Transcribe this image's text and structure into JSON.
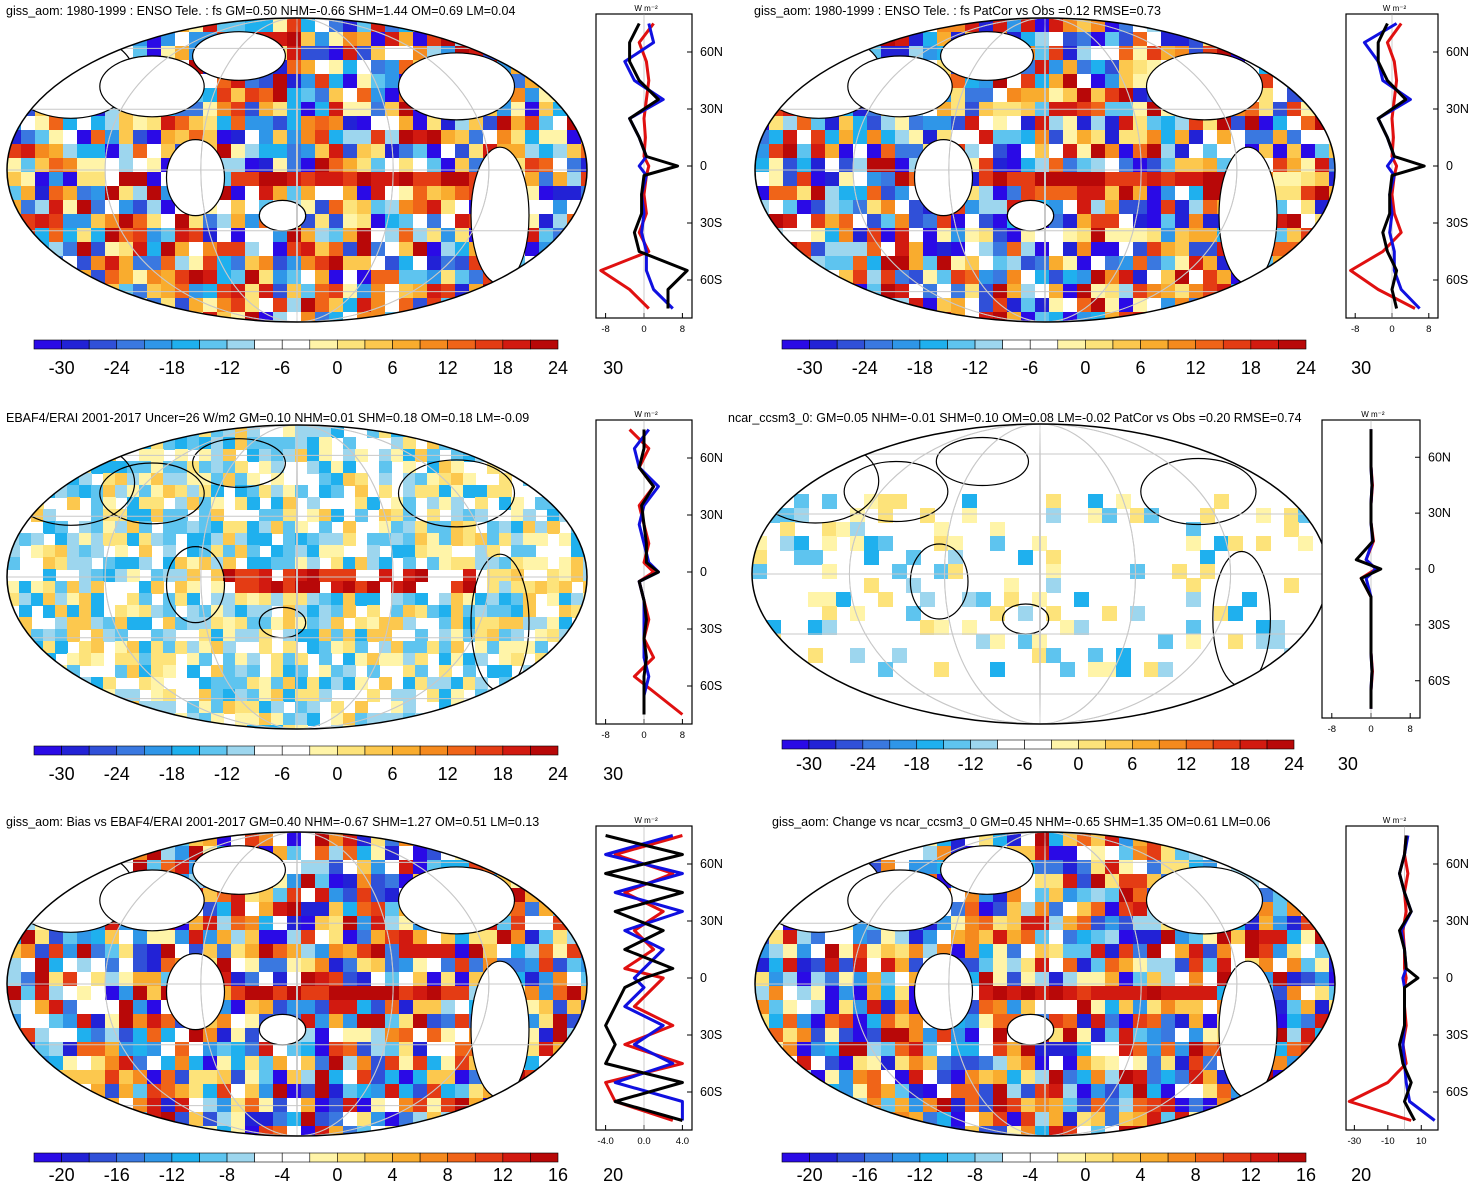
{
  "colorbar_palette": [
    "#2a0ae6",
    "#2222d6",
    "#3050d8",
    "#3a78e0",
    "#2f96e8",
    "#1fb0ee",
    "#5ec4ef",
    "#9dd6ee",
    "#ffffff",
    "#ffffff",
    "#fff4a8",
    "#fde37a",
    "#fcc84e",
    "#f9ac2e",
    "#f58a1e",
    "#f06418",
    "#e43c14",
    "#d21a10",
    "#b80808"
  ],
  "series_colors": {
    "model": "#e01010",
    "obs": "#1010e0",
    "diff": "#000000"
  },
  "chart_data": [
    {
      "type": "heatmap",
      "title": "giss_aom: 1980-1999 : ENSO Tele. : fs GM=0.50 NHM=-0.66 SHM=1.44 OM=0.69 LM=0.04",
      "colorbar_labels": [
        "-30",
        "-24",
        "-18",
        "-12",
        "-6",
        "0",
        "6",
        "12",
        "18",
        "24",
        "30"
      ],
      "zonal": {
        "units": "W m⁻²",
        "xticks": [
          "-8",
          "0",
          "8"
        ],
        "xlim": [
          -10,
          10
        ],
        "ylabels": [
          "60N",
          "30N",
          "0",
          "30S",
          "60S"
        ],
        "lat": [
          75,
          65,
          55,
          45,
          35,
          25,
          15,
          5,
          0,
          -5,
          -15,
          -25,
          -35,
          -45,
          -55,
          -65,
          -75
        ],
        "series": [
          {
            "name": "model",
            "values": [
              2,
              -1,
              0.5,
              1,
              0.5,
              0,
              0.3,
              0,
              1,
              0.5,
              0,
              0.5,
              -1,
              1,
              -9,
              -3,
              1
            ]
          },
          {
            "name": "obs",
            "values": [
              1,
              2,
              -4,
              -2,
              4,
              -3,
              -1,
              0.5,
              -1,
              0.5,
              -0.5,
              0,
              -0.5,
              0.5,
              0.5,
              2,
              6
            ]
          },
          {
            "name": "diff",
            "values": [
              -1,
              -3,
              -3,
              -1,
              3,
              -3,
              -1,
              0.5,
              7,
              0,
              -0.5,
              -0.5,
              -2,
              -1,
              9,
              5,
              5
            ]
          }
        ]
      }
    },
    {
      "type": "heatmap",
      "title": "giss_aom: 1980-1999 : ENSO Tele. : fs PatCor vs Obs =0.12 RMSE=0.73",
      "colorbar_labels": [
        "-30",
        "-24",
        "-18",
        "-12",
        "-6",
        "0",
        "6",
        "12",
        "18",
        "24",
        "30"
      ],
      "zonal": {
        "units": "W m⁻²",
        "xticks": [
          "-8",
          "0",
          "8"
        ],
        "xlim": [
          -10,
          10
        ],
        "ylabels": [
          "60N",
          "30N",
          "0",
          "30S",
          "60S"
        ],
        "lat": [
          75,
          65,
          55,
          45,
          35,
          25,
          15,
          5,
          0,
          -5,
          -15,
          -25,
          -35,
          -45,
          -55,
          -65,
          -75
        ],
        "series": [
          {
            "name": "model",
            "values": [
              2,
              -1,
              0.5,
              1,
              0.5,
              0,
              0.3,
              0,
              1,
              0.5,
              0,
              0.5,
              2,
              -2,
              -9,
              -3,
              5
            ]
          },
          {
            "name": "obs",
            "values": [
              1,
              -6,
              -3,
              -2,
              4,
              -3,
              -1,
              0.5,
              -1,
              0.5,
              -0.5,
              0,
              -0.5,
              0.5,
              0.5,
              2,
              6
            ]
          },
          {
            "name": "diff",
            "values": [
              -1,
              -3,
              -3,
              -1,
              3,
              -3,
              -1,
              0.5,
              7,
              0,
              -0.5,
              -0.5,
              -2,
              -1,
              1,
              0,
              1
            ]
          }
        ]
      }
    },
    {
      "type": "heatmap",
      "title": "EBAF4/ERAI 2001-2017 Uncer=26 W/m2 GM=0.10 NHM=0.01 SHM=0.18 OM=0.18 LM=-0.09",
      "colorbar_labels": [
        "-30",
        "-24",
        "-18",
        "-12",
        "-6",
        "0",
        "6",
        "12",
        "18",
        "24",
        "30"
      ],
      "zonal": {
        "units": "W m⁻²",
        "xticks": [
          "-8",
          "0",
          "8"
        ],
        "xlim": [
          -10,
          10
        ],
        "ylabels": [
          "60N",
          "30N",
          "0",
          "30S",
          "60S"
        ],
        "lat": [
          75,
          65,
          55,
          45,
          35,
          25,
          15,
          5,
          0,
          -5,
          -15,
          -25,
          -35,
          -45,
          -55,
          -65,
          -75
        ],
        "series": [
          {
            "name": "model",
            "values": [
              -3,
              1,
              -1,
              2,
              -1,
              0,
              1,
              0,
              2,
              -1,
              0,
              1,
              0,
              2,
              -2,
              3,
              8
            ]
          },
          {
            "name": "obs",
            "values": [
              1,
              -2,
              -1,
              3,
              0,
              -1,
              0,
              1,
              3,
              -1,
              0,
              0,
              0,
              0,
              1,
              0,
              0
            ]
          },
          {
            "name": "diff",
            "values": [
              0,
              0,
              -1,
              2,
              -0.5,
              0,
              0.5,
              0.5,
              3,
              -1,
              0,
              0.5,
              0,
              0.5,
              0,
              0,
              0
            ]
          }
        ]
      }
    },
    {
      "type": "heatmap",
      "title": "ncar_ccsm3_0: GM=0.05 NHM=-0.01 SHM=0.10 OM=0.08 LM=-0.02 PatCor vs Obs =0.20 RMSE=0.74",
      "colorbar_labels": [
        "-30",
        "-24",
        "-18",
        "-12",
        "-6",
        "0",
        "6",
        "12",
        "18",
        "24",
        "30"
      ],
      "zonal": {
        "units": "W m⁻²",
        "xticks": [
          "-8",
          "0",
          "8"
        ],
        "xlim": [
          -10,
          10
        ],
        "ylabels": [
          "60N",
          "30N",
          "0",
          "30S",
          "60S"
        ],
        "lat": [
          75,
          65,
          55,
          45,
          35,
          25,
          15,
          5,
          0,
          -5,
          -15,
          -25,
          -35,
          -45,
          -55,
          -65,
          -75
        ],
        "series": [
          {
            "name": "model",
            "values": [
              0,
              0,
              0,
              0.3,
              0,
              0,
              0.5,
              -1,
              1,
              -2,
              0,
              0,
              0,
              0,
              0.3,
              0,
              0
            ]
          },
          {
            "name": "obs",
            "values": [
              0,
              0,
              0,
              0.2,
              0,
              0,
              0.3,
              -1,
              1,
              -1,
              0,
              0,
              0,
              0,
              0.2,
              0,
              0
            ]
          },
          {
            "name": "diff",
            "values": [
              0,
              0,
              0,
              0.2,
              0,
              0,
              0.4,
              -3,
              2,
              -2,
              0,
              0,
              0,
              0,
              0.2,
              0,
              0
            ]
          }
        ]
      }
    },
    {
      "type": "heatmap",
      "title": "giss_aom: Bias vs EBAF4/ERAI 2001-2017 GM=0.40 NHM=-0.67 SHM=1.27 OM=0.51 LM=0.13",
      "colorbar_labels": [
        "-20",
        "-16",
        "-12",
        "-8",
        "-4",
        "0",
        "4",
        "8",
        "12",
        "16",
        "20"
      ],
      "zonal": {
        "units": "W m⁻²",
        "xticks": [
          "-4.0",
          "0.0",
          "4.0"
        ],
        "xlim": [
          -5,
          5
        ],
        "ylabels": [
          "60N",
          "30N",
          "0",
          "30S",
          "60S"
        ],
        "lat": [
          75,
          65,
          55,
          45,
          35,
          25,
          15,
          5,
          0,
          -5,
          -15,
          -25,
          -35,
          -45,
          -55,
          -65,
          -75
        ],
        "series": [
          {
            "name": "model",
            "values": [
              4,
              -3,
              3,
              -2,
              2,
              -1,
              1,
              -2,
              2,
              1,
              -1,
              3,
              -2,
              4,
              -4,
              -3,
              3
            ]
          },
          {
            "name": "obs",
            "values": [
              3,
              -4,
              4,
              -3,
              4,
              -2,
              2,
              0,
              -1,
              0,
              -2,
              2,
              -1,
              3,
              -3,
              4,
              4
            ]
          },
          {
            "name": "diff",
            "values": [
              -4,
              4,
              -4,
              4,
              -3,
              2,
              -2,
              3,
              0,
              -2,
              -3,
              -4,
              -3,
              -4,
              4,
              -3,
              4
            ]
          }
        ]
      }
    },
    {
      "type": "heatmap",
      "title": "giss_aom: Change vs ncar_ccsm3_0 GM=0.45 NHM=-0.65 SHM=1.35 OM=0.61 LM=0.06",
      "colorbar_labels": [
        "-20",
        "-16",
        "-12",
        "-8",
        "-4",
        "0",
        "4",
        "8",
        "12",
        "16",
        "20"
      ],
      "zonal": {
        "units": "W m⁻²",
        "xticks": [
          "-30",
          "-10",
          "10"
        ],
        "xlim": [
          -35,
          20
        ],
        "ylabels": [
          "60N",
          "30N",
          "0",
          "30S",
          "60S"
        ],
        "lat": [
          75,
          65,
          55,
          45,
          35,
          25,
          15,
          5,
          0,
          -5,
          -15,
          -25,
          -35,
          -45,
          -55,
          -65,
          -75
        ],
        "series": [
          {
            "name": "model",
            "values": [
              1,
              0,
              2,
              0,
              1,
              -1,
              0,
              0,
              1,
              0,
              0,
              1,
              -1,
              1,
              -10,
              -33,
              4
            ]
          },
          {
            "name": "obs",
            "values": [
              2,
              0,
              -3,
              0,
              4,
              -2,
              0,
              1,
              -1,
              0,
              0,
              0,
              -1,
              0,
              1,
              3,
              18
            ]
          },
          {
            "name": "diff",
            "values": [
              1,
              0,
              -3,
              0,
              4,
              -3,
              0,
              1,
              8,
              0,
              0,
              0,
              -3,
              -1,
              4,
              0,
              6
            ]
          }
        ]
      }
    }
  ]
}
